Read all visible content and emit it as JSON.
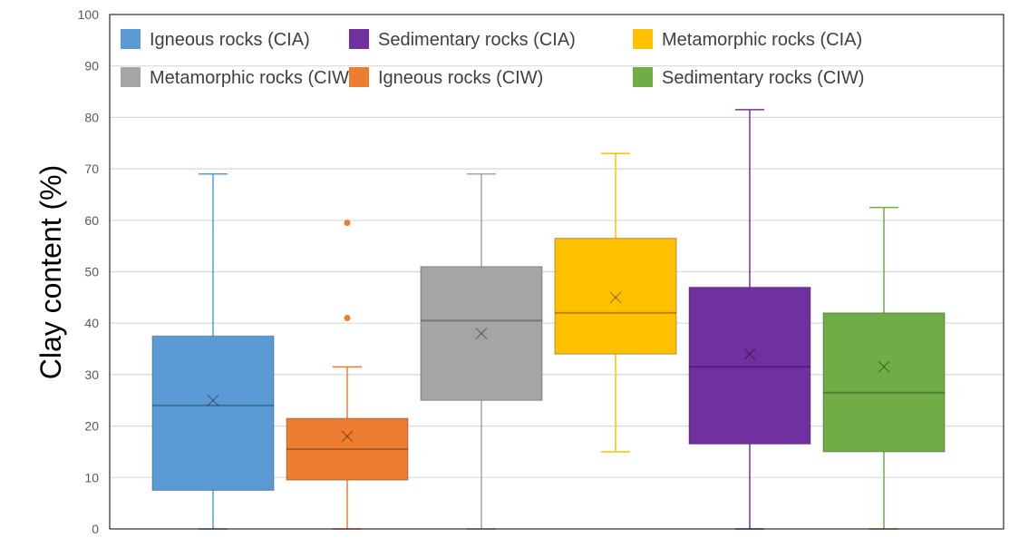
{
  "chart_data": {
    "type": "boxplot",
    "title": "",
    "xlabel": "",
    "ylabel": "Clay content (%)",
    "ylim": [
      0,
      100
    ],
    "yticks": [
      0,
      10,
      20,
      30,
      40,
      50,
      60,
      70,
      80,
      90,
      100
    ],
    "grid": true,
    "legend_position": "top",
    "series": [
      {
        "name": "Igneous rocks (CIA)",
        "color": "#5b9bd5",
        "min": 0,
        "q1": 7.5,
        "median": 24,
        "q3": 37.5,
        "max": 69,
        "mean": 25,
        "outliers": []
      },
      {
        "name": "Igneous rocks (CIW)",
        "color": "#ed7d31",
        "min": 0,
        "q1": 9.5,
        "median": 15.5,
        "q3": 21.5,
        "max": 31.5,
        "mean": 18,
        "outliers": [
          41,
          59.5
        ]
      },
      {
        "name": "Metamorphic rocks (CIW)",
        "color": "#a5a5a5",
        "min": 0,
        "q1": 25,
        "median": 40.5,
        "q3": 51,
        "max": 69,
        "mean": 38,
        "outliers": []
      },
      {
        "name": "Metamorphic rocks (CIA)",
        "color": "#ffc000",
        "min": 15,
        "q1": 34,
        "median": 42,
        "q3": 56.5,
        "max": 73,
        "mean": 45,
        "outliers": []
      },
      {
        "name": "Sedimentary rocks (CIA)",
        "color": "#7030a0",
        "min": 0,
        "q1": 16.5,
        "median": 31.5,
        "q3": 47,
        "max": 81.5,
        "mean": 34,
        "outliers": []
      },
      {
        "name": "Sedimentary rocks (CIW)",
        "color": "#70ad47",
        "min": 0,
        "q1": 15,
        "median": 26.5,
        "q3": 42,
        "max": 62.5,
        "mean": 31.5,
        "outliers": []
      }
    ],
    "legend_order": [
      0,
      2,
      4,
      1,
      3,
      5
    ]
  }
}
